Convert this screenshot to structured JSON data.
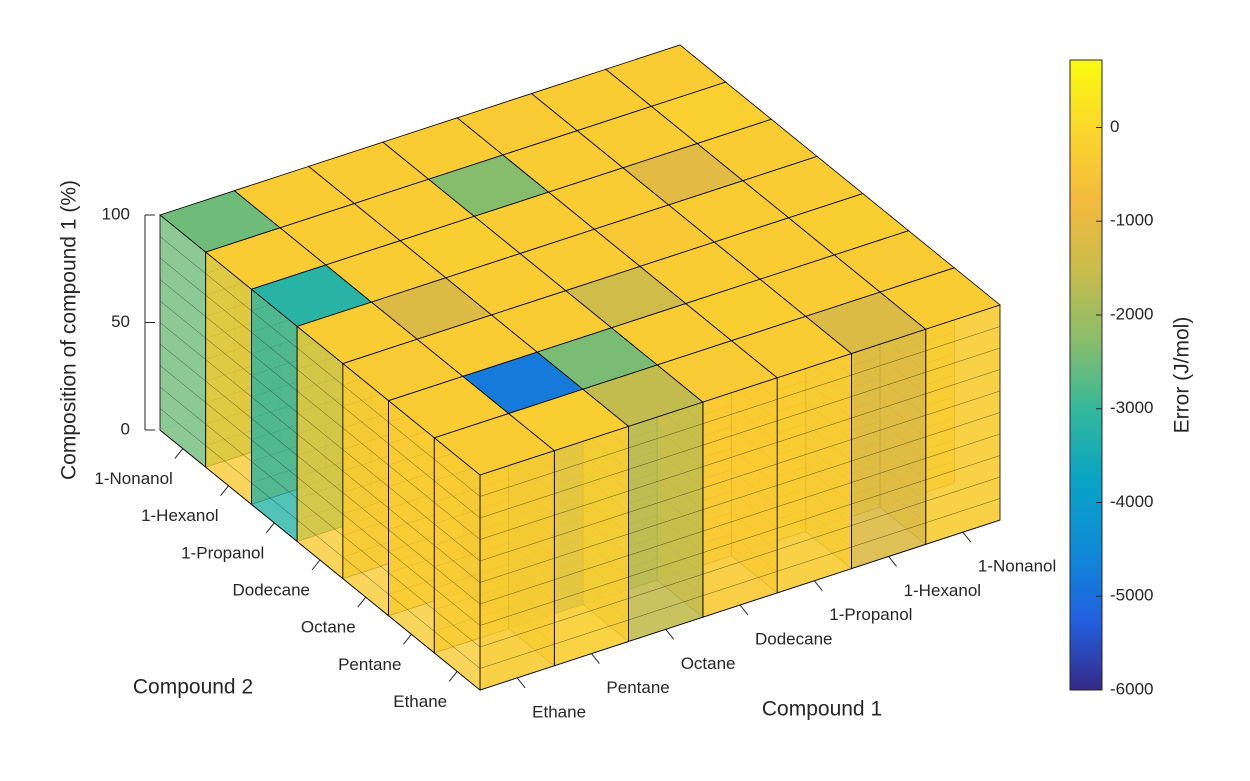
{
  "chart_data": {
    "type": "voxel3d",
    "x_label": "Compound 1",
    "y_label": "Compound 2",
    "z_label": "Composition of compound 1 (%)",
    "x_categories": [
      "Ethane",
      "Pentane",
      "Octane",
      "Dodecane",
      "1-Propanol",
      "1-Hexanol",
      "1-Nonanol"
    ],
    "y_categories": [
      "Ethane",
      "Pentane",
      "Octane",
      "Dodecane",
      "1-Propanol",
      "1-Hexanol",
      "1-Nonanol"
    ],
    "zlim": [
      0,
      100
    ],
    "zticks": [
      0,
      50,
      100
    ],
    "values": [
      [
        -300,
        -250,
        -1600,
        -350,
        -300,
        -1200,
        -300
      ],
      [
        -300,
        -4800,
        -2400,
        -300,
        -250,
        -300,
        -350
      ],
      [
        -350,
        -300,
        -300,
        -1400,
        -300,
        -300,
        -250
      ],
      [
        -300,
        -1200,
        -300,
        -300,
        -400,
        -300,
        -300
      ],
      [
        -3200,
        -300,
        -250,
        -300,
        -300,
        -1100,
        -300
      ],
      [
        -300,
        -300,
        -300,
        -2300,
        -300,
        -300,
        -200
      ],
      [
        -2500,
        -300,
        -300,
        -300,
        -350,
        -300,
        -300
      ]
    ],
    "colorbar_label": "Error (J/mol)",
    "clim": [
      -6000,
      720
    ],
    "cticks": [
      0,
      -1000,
      -2000,
      -3000,
      -4000,
      -5000,
      -6000
    ],
    "colormap": [
      "#352a87",
      "#2260e0",
      "#0f8bd6",
      "#08a4c6",
      "#33b89a",
      "#8abd6b",
      "#c9bc4c",
      "#f4ba3c",
      "#fbd72c",
      "#f9fb0e"
    ]
  }
}
